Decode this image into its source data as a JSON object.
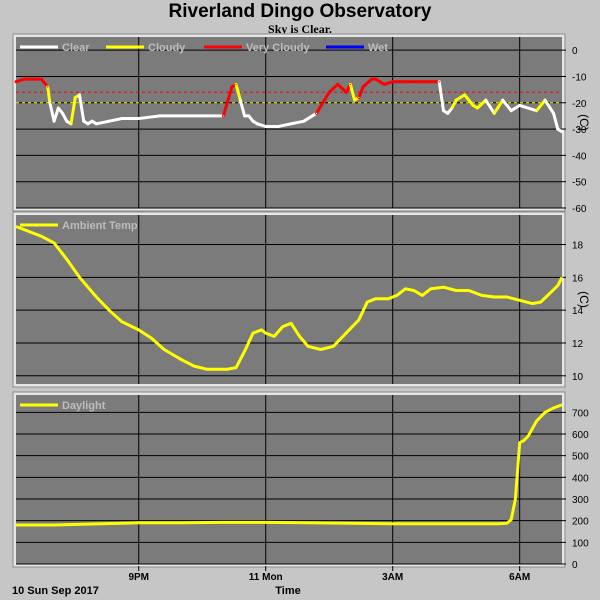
{
  "header": {
    "title": "Riverland Dingo Observatory",
    "subtitle": "Sky is Clear."
  },
  "footer": {
    "date_label": "10 Sun Sep 2017",
    "xaxis_label": "Time"
  },
  "x_axis": {
    "tick_labels": [
      {
        "label": "9PM",
        "hour": 21
      },
      {
        "label": "11 Mon",
        "hour": 24
      },
      {
        "label": "3AM",
        "hour": 27
      },
      {
        "label": "6AM",
        "hour": 30
      }
    ],
    "xlim_hours": [
      18.1,
      31.0
    ]
  },
  "colors": {
    "plot_bg": "#7b7b7b",
    "page_bg": "#c6c6c6",
    "grid": "#000000",
    "clear": "#ffffff",
    "cloudy": "#ffff00",
    "very_cloudy": "#ff0000",
    "wet": "#0000ff",
    "threshold": "#ff0000",
    "ambient": "#ffff00",
    "daylight": "#ffff00"
  },
  "chart_data": [
    {
      "type": "line",
      "id": "sky",
      "legend": [
        {
          "name": "Clear",
          "color": "#ffffff"
        },
        {
          "name": "Cloudy",
          "color": "#ffff00"
        },
        {
          "name": "Very Cloudy",
          "color": "#ff0000"
        },
        {
          "name": "Wet",
          "color": "#0000ff"
        }
      ],
      "ylabel": "(C)",
      "ylim": [
        -60,
        5
      ],
      "yticks": [
        0,
        -10,
        -20,
        -30,
        -40,
        -50,
        -60
      ],
      "thresholds": [
        -16,
        -20
      ],
      "x": [
        18.1,
        18.3,
        18.5,
        18.7,
        18.85,
        18.9,
        19.0,
        19.1,
        19.2,
        19.3,
        19.4,
        19.5,
        19.6,
        19.7,
        19.8,
        19.9,
        20.0,
        20.3,
        20.6,
        21.0,
        21.5,
        22.0,
        22.5,
        23.0,
        23.2,
        23.3,
        23.4,
        23.5,
        23.6,
        23.7,
        23.8,
        24.0,
        24.3,
        24.6,
        24.9,
        25.2,
        25.5,
        25.7,
        25.9,
        26.0,
        26.1,
        26.2,
        26.3,
        26.5,
        26.6,
        26.7,
        26.8,
        27.0,
        27.3,
        27.6,
        27.9,
        28.1,
        28.2,
        28.3,
        28.4,
        28.5,
        28.7,
        28.9,
        29.0,
        29.2,
        29.4,
        29.6,
        29.8,
        30.0,
        30.2,
        30.4,
        30.6,
        30.8,
        30.9,
        31.0
      ],
      "y": [
        -12,
        -11,
        -11,
        -11,
        -14,
        -20,
        -27,
        -22,
        -24,
        -27,
        -28,
        -18,
        -17,
        -27,
        -28,
        -27,
        -28,
        -27,
        -26,
        -26,
        -25,
        -25,
        -25,
        -25,
        -14,
        -13,
        -19,
        -25,
        -25,
        -27,
        -28,
        -29,
        -29,
        -28,
        -27,
        -24,
        -16,
        -13,
        -16,
        -13,
        -19,
        -18,
        -14,
        -11,
        -11,
        -12,
        -13,
        -12,
        -12,
        -12,
        -12,
        -12,
        -23,
        -24,
        -22,
        -19,
        -17,
        -21,
        -22,
        -19,
        -24,
        -19,
        -23,
        -21,
        -22,
        -23,
        -19,
        -24,
        -30,
        -31
      ],
      "condition": [
        "very_cloudy",
        "very_cloudy",
        "very_cloudy",
        "very_cloudy",
        "very_cloudy",
        "cloudy",
        "clear",
        "clear",
        "clear",
        "clear",
        "clear",
        "cloudy",
        "cloudy",
        "clear",
        "clear",
        "clear",
        "clear",
        "clear",
        "clear",
        "clear",
        "clear",
        "clear",
        "clear",
        "clear",
        "very_cloudy",
        "very_cloudy",
        "cloudy",
        "clear",
        "clear",
        "clear",
        "clear",
        "clear",
        "clear",
        "clear",
        "clear",
        "clear",
        "very_cloudy",
        "very_cloudy",
        "very_cloudy",
        "very_cloudy",
        "cloudy",
        "cloudy",
        "very_cloudy",
        "very_cloudy",
        "very_cloudy",
        "very_cloudy",
        "very_cloudy",
        "very_cloudy",
        "very_cloudy",
        "very_cloudy",
        "very_cloudy",
        "very_cloudy",
        "clear",
        "clear",
        "clear",
        "cloudy",
        "cloudy",
        "cloudy",
        "cloudy",
        "cloudy",
        "clear",
        "cloudy",
        "clear",
        "clear",
        "clear",
        "clear",
        "cloudy",
        "clear",
        "clear",
        "clear"
      ]
    },
    {
      "type": "line",
      "id": "ambient",
      "legend": [
        {
          "name": "Ambient Temp",
          "color": "#ffff00"
        }
      ],
      "ylabel": "(C)",
      "ylim": [
        9.5,
        19.8
      ],
      "yticks": [
        10,
        12,
        14,
        16,
        18
      ],
      "x": [
        18.1,
        18.4,
        18.7,
        19.0,
        19.3,
        19.6,
        20.0,
        20.3,
        20.6,
        21.0,
        21.3,
        21.6,
        22.0,
        22.3,
        22.6,
        22.9,
        23.1,
        23.3,
        23.5,
        23.7,
        23.9,
        24.0,
        24.2,
        24.4,
        24.6,
        24.8,
        25.0,
        25.3,
        25.6,
        25.9,
        26.2,
        26.4,
        26.6,
        26.9,
        27.1,
        27.3,
        27.5,
        27.7,
        27.9,
        28.2,
        28.5,
        28.8,
        29.1,
        29.4,
        29.7,
        30.0,
        30.3,
        30.5,
        30.7,
        30.9,
        31.0
      ],
      "y": [
        19.1,
        18.8,
        18.5,
        18.1,
        17.1,
        16.0,
        14.8,
        14.0,
        13.3,
        12.8,
        12.3,
        11.6,
        11.0,
        10.6,
        10.4,
        10.4,
        10.4,
        10.5,
        11.5,
        12.6,
        12.8,
        12.6,
        12.4,
        13.0,
        13.2,
        12.4,
        11.8,
        11.6,
        11.8,
        12.6,
        13.4,
        14.5,
        14.7,
        14.7,
        14.9,
        15.3,
        15.2,
        14.9,
        15.3,
        15.4,
        15.2,
        15.2,
        14.9,
        14.8,
        14.8,
        14.6,
        14.4,
        14.5,
        15.0,
        15.5,
        16.0
      ]
    },
    {
      "type": "line",
      "id": "daylight",
      "legend": [
        {
          "name": "Daylight",
          "color": "#ffff00"
        }
      ],
      "ylabel": "",
      "ylim": [
        0,
        780
      ],
      "yticks": [
        0,
        100,
        200,
        300,
        400,
        500,
        600,
        700
      ],
      "x": [
        18.1,
        19.0,
        20.0,
        21.0,
        22.0,
        23.0,
        24.0,
        25.0,
        26.0,
        27.0,
        28.0,
        29.0,
        29.5,
        29.7,
        29.8,
        29.9,
        30.0,
        30.1,
        30.2,
        30.4,
        30.6,
        30.8,
        31.0
      ],
      "y": [
        180,
        180,
        185,
        190,
        190,
        192,
        192,
        190,
        188,
        186,
        186,
        186,
        186,
        188,
        205,
        300,
        560,
        570,
        590,
        660,
        700,
        720,
        735
      ]
    }
  ]
}
